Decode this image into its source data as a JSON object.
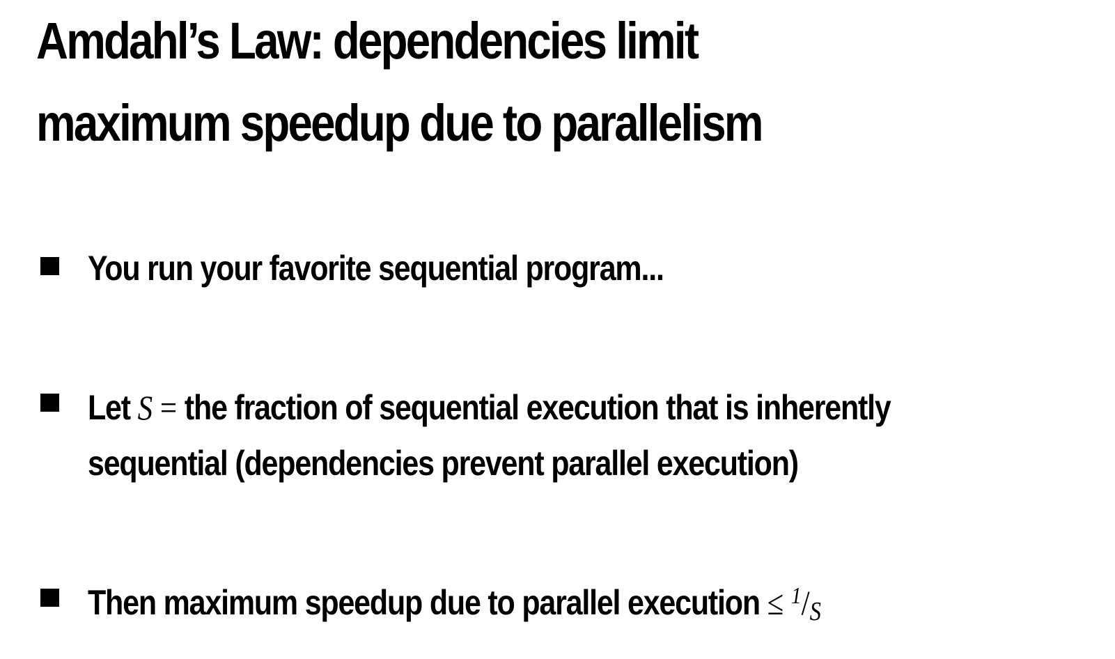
{
  "title": {
    "line1": "Amdahl’s Law: dependencies limit",
    "line2": "maximum speedup due to parallelism"
  },
  "bullets": [
    {
      "text": "You run your favorite sequential program..."
    },
    {
      "before_var": "Let ",
      "var": "S",
      "equals": " = ",
      "after_line1": "the fraction of sequential execution that is inherently",
      "line2": "sequential (dependencies prevent parallel execution)"
    },
    {
      "text": "Then maximum speedup due to parallel execution ",
      "leq": "≤",
      "frac_num": "1",
      "frac_slash": "/",
      "frac_den": "S"
    }
  ],
  "colors": {
    "background": "#ffffff",
    "text": "#000000"
  }
}
